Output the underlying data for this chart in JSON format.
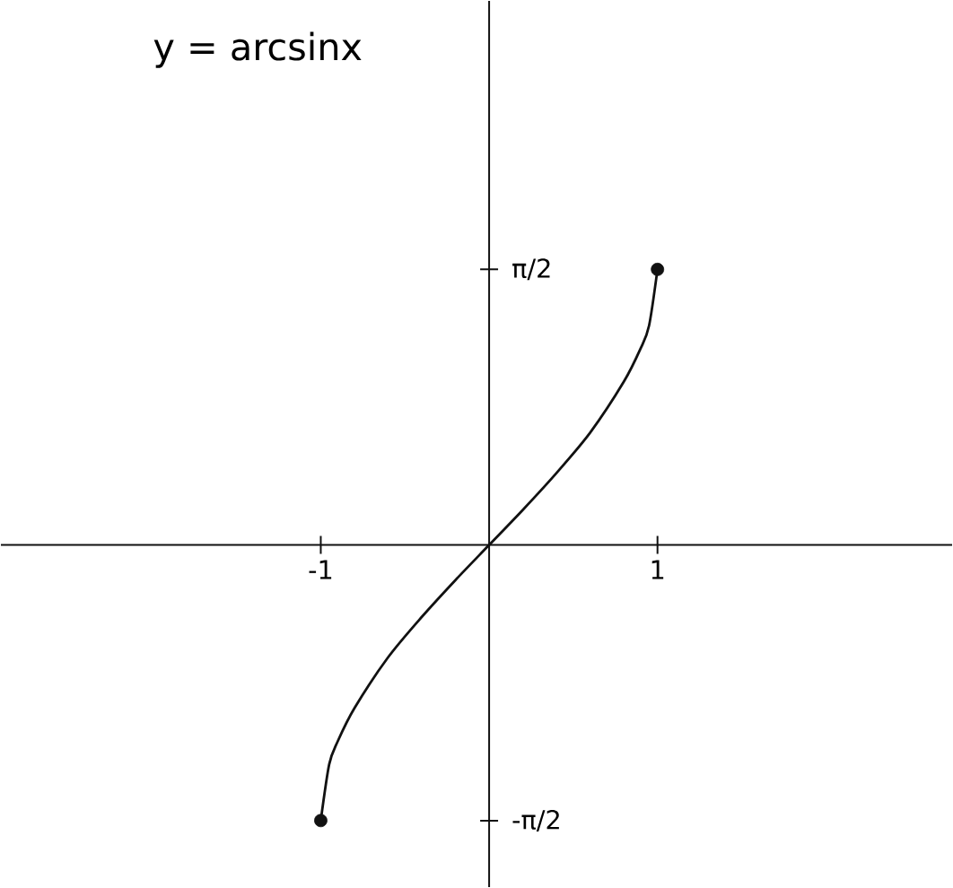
{
  "chart_data": {
    "type": "line",
    "title": "y = arcsinx",
    "xlim": [
      -2.9,
      2.75
    ],
    "ylim": [
      -1.95,
      3.1
    ],
    "xticks": [
      {
        "value": -1,
        "label": "-1"
      },
      {
        "value": 1,
        "label": "1"
      }
    ],
    "yticks": [
      {
        "value": -1.5708,
        "label": "-π/2"
      },
      {
        "value": 1.5708,
        "label": "π/2"
      }
    ],
    "color": "#111111",
    "series": [
      {
        "marker": "none",
        "x": [
          -1,
          -0.95,
          -0.9,
          -0.8,
          -0.6,
          -0.4,
          -0.2,
          0,
          0.2,
          0.4,
          0.6,
          0.8,
          0.9,
          0.95,
          1
        ],
        "values": [
          -1.57,
          -1.25,
          -1.12,
          -0.93,
          -0.64,
          -0.41,
          -0.2,
          0,
          0.2,
          0.41,
          0.64,
          0.93,
          1.12,
          1.25,
          1.57
        ]
      },
      {
        "type": "scatter",
        "marker": "circle",
        "x": [
          -1,
          1
        ],
        "values": [
          -1.57,
          1.57
        ]
      }
    ]
  }
}
